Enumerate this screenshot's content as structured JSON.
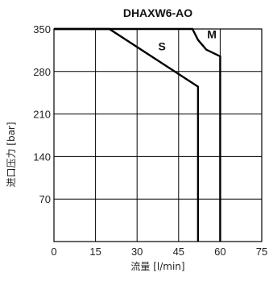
{
  "chart_data": {
    "type": "line",
    "title": "DHAXW6-AO",
    "xlabel": "流量 [l/min]",
    "ylabel": "进口压力 [bar]",
    "xlim": [
      0,
      75
    ],
    "ylim": [
      0,
      350
    ],
    "xticks": [
      0,
      15,
      30,
      45,
      60,
      75
    ],
    "yticks": [
      70,
      140,
      210,
      280,
      350
    ],
    "grid": true,
    "series": [
      {
        "name": "S",
        "x": [
          0,
          20,
          52,
          52
        ],
        "y": [
          350,
          350,
          255,
          0
        ]
      },
      {
        "name": "M",
        "x": [
          0,
          50,
          52,
          55,
          60,
          60
        ],
        "y": [
          350,
          350,
          332,
          316,
          305,
          0
        ]
      }
    ]
  }
}
